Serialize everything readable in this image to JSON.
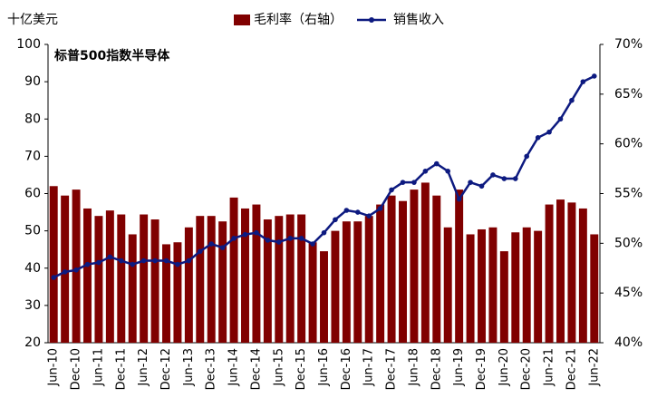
{
  "chart_data": {
    "type": "bar_line",
    "y_label": "十亿美元",
    "annotation": "标普500指数半导体",
    "categories": [
      "Jun-10",
      null,
      "Dec-10",
      null,
      "Jun-11",
      null,
      "Dec-11",
      null,
      "Jun-12",
      null,
      "Dec-12",
      null,
      "Jun-13",
      null,
      "Dec-13",
      null,
      "Jun-14",
      null,
      "Dec-14",
      null,
      "Jun-15",
      null,
      "Dec-15",
      null,
      "Jun-16",
      null,
      "Dec-16",
      null,
      "Jun-17",
      null,
      "Dec-17",
      null,
      "Jun-18",
      null,
      "Dec-18",
      null,
      "Jun-19",
      null,
      "Dec-19",
      null,
      "Jun-20",
      null,
      "Dec-20",
      null,
      "Jun-21",
      null,
      "Dec-21",
      null,
      "Jun-22"
    ],
    "series": [
      {
        "name": "毛利率（右轴）",
        "type": "bar",
        "axis": "y2",
        "color": "#800000",
        "values": [
          55.75,
          54.8,
          55.4,
          53.5,
          52.75,
          53.3,
          52.9,
          50.9,
          52.9,
          52.4,
          49.9,
          50.1,
          51.6,
          52.75,
          52.75,
          52.2,
          54.6,
          53.5,
          53.9,
          52.4,
          52.75,
          52.9,
          52.9,
          50.1,
          49.2,
          51.25,
          52.2,
          52.2,
          52.75,
          53.9,
          54.8,
          54.25,
          55.4,
          56.1,
          54.8,
          51.6,
          55.4,
          50.9,
          51.4,
          51.6,
          49.2,
          51.1,
          51.6,
          51.25,
          53.9,
          54.4,
          54.1,
          53.5,
          50.9
        ]
      },
      {
        "name": "销售收入",
        "type": "line",
        "axis": "y",
        "color": "#0d1a80",
        "values": [
          37.5,
          39,
          39.5,
          41,
          41.5,
          43,
          42,
          41,
          42,
          42,
          42,
          41,
          42,
          44.5,
          46.5,
          45.5,
          48,
          49,
          49.5,
          47.5,
          47,
          48,
          48,
          46.5,
          49.5,
          53,
          55.5,
          55,
          54,
          56,
          61,
          63,
          63,
          66,
          68,
          66,
          58.5,
          63,
          62,
          65,
          64,
          64,
          70,
          75,
          76.5,
          80,
          85,
          90,
          91.5
        ]
      }
    ],
    "ylim": [
      20,
      100
    ],
    "yticks": [
      20,
      30,
      40,
      50,
      60,
      70,
      80,
      90,
      100
    ],
    "y2lim": [
      40,
      70
    ],
    "y2ticks": [
      {
        "value": 40,
        "label": "40%"
      },
      {
        "value": 45,
        "label": "45%"
      },
      {
        "value": 50,
        "label": "50%"
      },
      {
        "value": 55,
        "label": "55%"
      },
      {
        "value": 60,
        "label": "60%"
      },
      {
        "value": 65,
        "label": "65%"
      },
      {
        "value": 70,
        "label": "70%"
      }
    ]
  }
}
